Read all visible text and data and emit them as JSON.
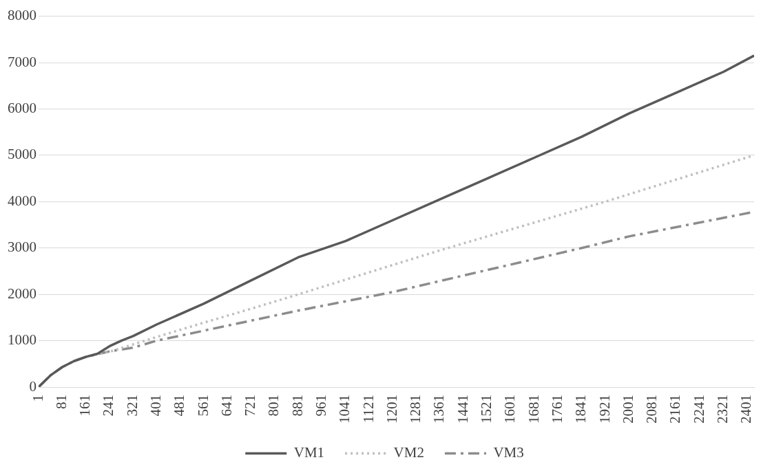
{
  "chart_data": {
    "type": "line",
    "xlim": [
      1,
      2425
    ],
    "xticks": [
      1,
      81,
      161,
      241,
      321,
      401,
      481,
      561,
      641,
      721,
      801,
      881,
      961,
      1041,
      1121,
      1201,
      1281,
      1361,
      1441,
      1521,
      1601,
      1681,
      1761,
      1841,
      1921,
      2001,
      2081,
      2161,
      2241,
      2321,
      2401
    ],
    "ylim": [
      0,
      8000
    ],
    "yticks": [
      0,
      1000,
      2000,
      3000,
      4000,
      5000,
      6000,
      7000,
      8000
    ],
    "grid": "y",
    "legend": "bottom",
    "marker": "none",
    "series": [
      {
        "name": "VM1",
        "color": "#595959",
        "line_style": "solid",
        "x": [
          1,
          41,
          81,
          121,
          161,
          201,
          241,
          281,
          321,
          401,
          561,
          721,
          881,
          1041,
          1201,
          1361,
          1521,
          1681,
          1841,
          2001,
          2161,
          2321,
          2425
        ],
        "values": [
          0,
          250,
          430,
          560,
          650,
          720,
          880,
          1000,
          1100,
          1350,
          1800,
          2300,
          2800,
          3150,
          3600,
          4050,
          4500,
          4950,
          5400,
          5900,
          6350,
          6800,
          7150
        ]
      },
      {
        "name": "VM2",
        "color": "#bfbfbf",
        "line_style": "dotted",
        "x": [
          1,
          41,
          81,
          121,
          161,
          201,
          241,
          321,
          401,
          561,
          721,
          881,
          1361,
          1921,
          2425
        ],
        "values": [
          0,
          250,
          430,
          560,
          650,
          710,
          760,
          920,
          1080,
          1390,
          1690,
          2000,
          2950,
          4000,
          5000
        ]
      },
      {
        "name": "VM3",
        "color": "#8c8c8c",
        "line_style": "dashed",
        "x": [
          1,
          41,
          81,
          121,
          161,
          201,
          241,
          321,
          401,
          881,
          1201,
          1841,
          2001,
          2425
        ],
        "values": [
          0,
          250,
          430,
          560,
          650,
          710,
          770,
          850,
          1000,
          1650,
          2050,
          3000,
          3250,
          3780
        ]
      }
    ]
  }
}
